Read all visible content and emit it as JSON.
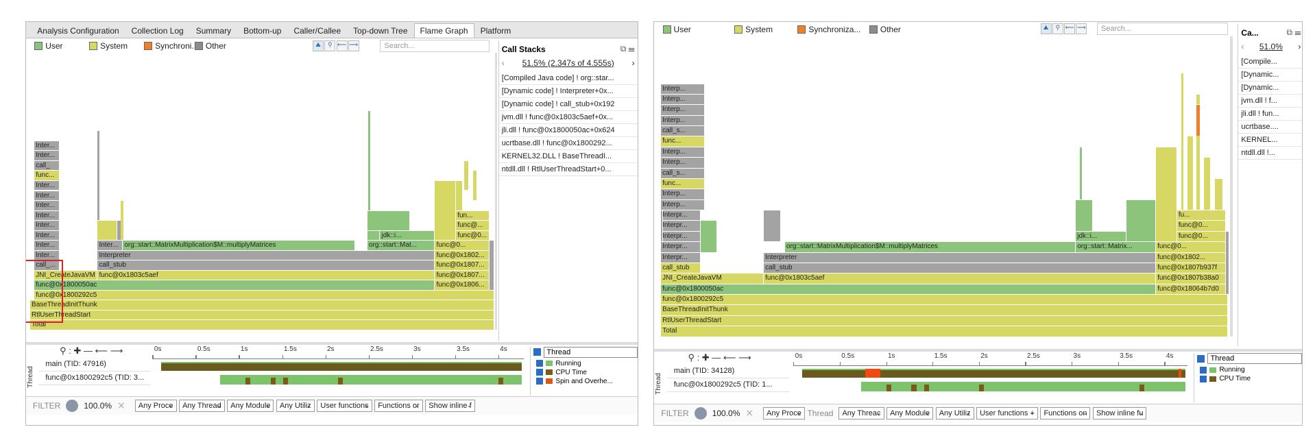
{
  "panels": [
    {
      "tabs": [
        "Analysis Configuration",
        "Collection Log",
        "Summary",
        "Bottom-up",
        "Caller/Callee",
        "Top-down Tree",
        "Flame Graph",
        "Platform"
      ],
      "legend": [
        "User",
        "System",
        "Synchroni...",
        "Other"
      ],
      "search": "Search...",
      "flame_labels": [
        "Total",
        "RtlUserThreadStart",
        "BaseThreadInitThunk",
        "func@0x1800292c5",
        "func@0x1800050ac",
        "func@0x1806...",
        "JNI_CreateJavaVM",
        "func@0x1803c5aef",
        "func@0x1807...",
        "call_...",
        "call_stub",
        "func@0x1807...",
        "Inter...",
        "Interpreter",
        "func@0x1802...",
        "Inter...",
        "Inter...",
        "org::start::MatrixMultiplication$M::multiplyMatrices",
        "org::start::Mat...",
        "func@0...",
        "Inter...",
        "jdk::i...",
        "func@0...",
        "Inter...",
        "func@...",
        "Inter...",
        "fun...",
        "Inter...",
        "Inter...",
        "Inter...",
        "func...",
        "call_",
        "Inter...",
        "Inter..."
      ],
      "call_stacks": {
        "title": "Call Stacks",
        "summary": "51.5% (2.347s of 4.555s)",
        "items": [
          "[Compiled Java code] ! org::star...",
          "[Dynamic code] ! Interpreter+0x...",
          "[Dynamic code] ! call_stub+0x192",
          "jvm.dll ! func@0x1803c5aef+0x...",
          "jli.dll ! func@0x1800050ac+0x624",
          "ucrtbase.dll ! func@0x1800292...",
          "KERNEL32.DLL ! BaseThreadI...",
          "ntdll.dll ! RtlUserThreadStart+0..."
        ]
      },
      "timeline": {
        "ticks": [
          "0s",
          "0.5s",
          "1s",
          "1.5s",
          "2s",
          "2.5s",
          "3s",
          "3.5s",
          "4s"
        ],
        "axis_label": "Thread",
        "threads": [
          "main (TID: 47916)",
          "func@0x1800292c5 (TID: 3..."
        ],
        "group_by": "Thread",
        "legend": [
          "Running",
          "CPU Time",
          "Spin and Overhe..."
        ]
      },
      "filter": {
        "label": "FILTER",
        "percent": "100.0%",
        "dropdowns": [
          "Any Proce",
          "Any Thread",
          "Any Module",
          "Any Utiliz",
          "User functions",
          "Functions or",
          "Show inline f"
        ]
      }
    },
    {
      "legend": [
        "User",
        "System",
        "Synchroniza...",
        "Other"
      ],
      "search": "Search...",
      "flame_labels": [
        "Total",
        "RtlUserThreadStart",
        "BaseThreadInitThunk",
        "func@0x1800292c5",
        "func@0x1800050ac",
        "func@0x18064b7d0",
        "JNI_CreateJavaVM",
        "func@0x1803c5aef",
        "func@0x1807b38a0",
        "call_stub",
        "call_stub",
        "func@0x1807b937f",
        "Interpr...",
        "Interpreter",
        "func@0x1802...",
        "Interpr...",
        "org::start::MatrixMultiplication$M::multiplyMatrices",
        "org::start::Matrix...",
        "func@0...",
        "Interpr...",
        "jdk::i...",
        "func@0...",
        "Interpr...",
        "func@0...",
        "Interpr...",
        "fu...",
        "Interp...",
        "Interp...",
        "func...",
        "call_s...",
        "Interp...",
        "Interp...",
        "func...",
        "call_s...",
        "Interp...",
        "Interp...",
        "Interp...",
        "Interp..."
      ],
      "call_stacks": {
        "title": "Ca...",
        "summary": "51.0%",
        "items": [
          "[Compile...",
          "[Dynamic...",
          "[Dynamic...",
          "jvm.dll ! f...",
          "jli.dll ! fun...",
          "ucrtbase....",
          "KERNEL...",
          "ntdll.dll !..."
        ]
      },
      "timeline": {
        "ticks": [
          "0s",
          "0.5s",
          "1s",
          "1.5s",
          "2s",
          "2.5s",
          "3s",
          "3.5s",
          "4s"
        ],
        "axis_label": "Thread",
        "threads": [
          "main (TID: 34128)",
          "func@0x1800292c5 (TID: 1..."
        ],
        "group_by": "Thread",
        "legend": [
          "Running",
          "CPU Time"
        ]
      },
      "filter": {
        "label": "FILTER",
        "percent": "100.0%",
        "thread_label": "Thread",
        "dropdowns": [
          "Any Proce",
          "Any Threac",
          "Any Module",
          "Any Utiliz",
          "User functions +",
          "Functions on",
          "Show inline fu"
        ]
      }
    }
  ]
}
